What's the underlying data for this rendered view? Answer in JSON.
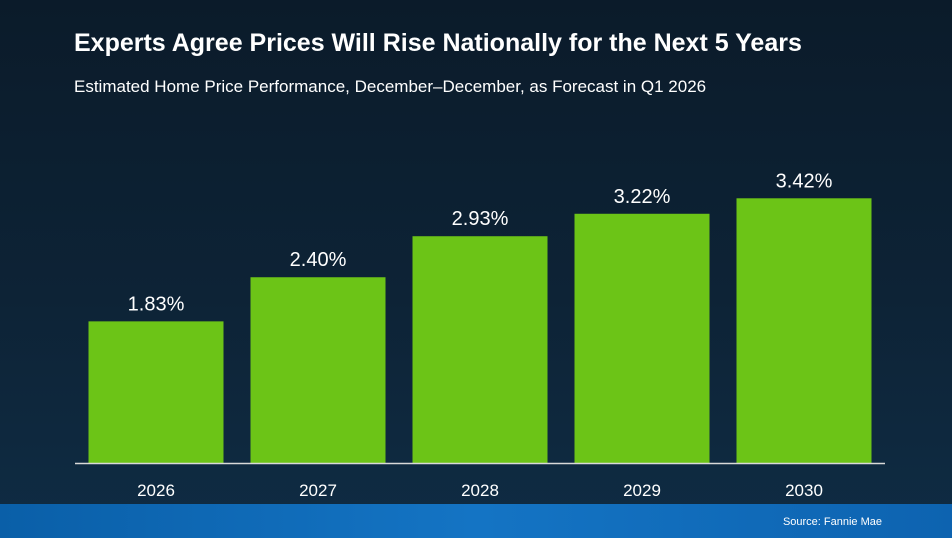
{
  "header": {
    "title": "Experts Agree Prices Will Rise Nationally for the Next 5 Years",
    "subtitle": "Estimated Home Price Performance, December–December, as Forecast in Q1 2026"
  },
  "footer": {
    "source": "Source: Fannie Mae"
  },
  "chart_data": {
    "type": "bar",
    "title": "Experts Agree Prices Will Rise Nationally for the Next 5 Years",
    "subtitle": "Estimated Home Price Performance, December–December, as Forecast in Q1 2026",
    "categories": [
      "2026",
      "2027",
      "2028",
      "2029",
      "2030"
    ],
    "values": [
      1.83,
      2.4,
      2.93,
      3.22,
      3.42
    ],
    "value_labels": [
      "1.83%",
      "2.40%",
      "2.93%",
      "3.22%",
      "3.42%"
    ],
    "xlabel": "",
    "ylabel": "",
    "ylim": [
      0,
      4
    ],
    "grid": false,
    "legend": "none",
    "colors": {
      "bar": "#6cc417",
      "axis": "#d9d9d9",
      "text": "#ffffff"
    }
  }
}
